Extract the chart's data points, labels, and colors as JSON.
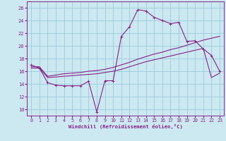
{
  "xlabel": "Windchill (Refroidissement éolien,°C)",
  "background_color": "#cce8f0",
  "grid_color": "#99cce0",
  "line_color": "#882288",
  "xlim": [
    -0.5,
    23.5
  ],
  "ylim": [
    9.0,
    27.0
  ],
  "xticks": [
    0,
    1,
    2,
    3,
    4,
    5,
    6,
    7,
    8,
    9,
    10,
    11,
    12,
    13,
    14,
    15,
    16,
    17,
    18,
    19,
    20,
    21,
    22,
    23
  ],
  "yticks": [
    10,
    12,
    14,
    16,
    18,
    20,
    22,
    24,
    26
  ],
  "curve1_x": [
    0,
    1,
    2,
    3,
    4,
    5,
    6,
    7,
    8,
    9,
    10,
    11,
    12,
    13,
    14,
    15,
    16,
    17,
    18,
    19,
    20,
    21,
    22,
    23
  ],
  "curve1_y": [
    17.0,
    16.5,
    14.2,
    13.8,
    13.7,
    13.7,
    13.7,
    14.4,
    9.6,
    14.5,
    14.5,
    21.5,
    23.0,
    25.7,
    25.5,
    24.5,
    24.0,
    23.5,
    23.7,
    20.7,
    20.8,
    19.5,
    18.5,
    16.0
  ],
  "curve2_x": [
    0,
    1,
    2,
    3,
    4,
    5,
    6,
    7,
    8,
    9,
    10,
    11,
    12,
    13,
    14,
    15,
    16,
    17,
    18,
    19,
    20,
    21,
    22,
    23
  ],
  "curve2_y": [
    16.5,
    16.5,
    15.0,
    15.1,
    15.2,
    15.3,
    15.4,
    15.5,
    15.6,
    15.8,
    16.0,
    16.3,
    16.7,
    17.1,
    17.5,
    17.8,
    18.1,
    18.4,
    18.7,
    19.0,
    19.3,
    19.6,
    15.0,
    15.7
  ],
  "curve3_x": [
    0,
    1,
    2,
    3,
    4,
    5,
    6,
    7,
    8,
    9,
    10,
    11,
    12,
    13,
    14,
    15,
    16,
    17,
    18,
    19,
    20,
    21,
    22,
    23
  ],
  "curve3_y": [
    16.7,
    16.7,
    15.2,
    15.4,
    15.6,
    15.7,
    15.8,
    16.0,
    16.1,
    16.3,
    16.6,
    17.0,
    17.4,
    17.9,
    18.3,
    18.7,
    19.0,
    19.4,
    19.7,
    20.1,
    20.5,
    20.9,
    21.2,
    21.5
  ]
}
